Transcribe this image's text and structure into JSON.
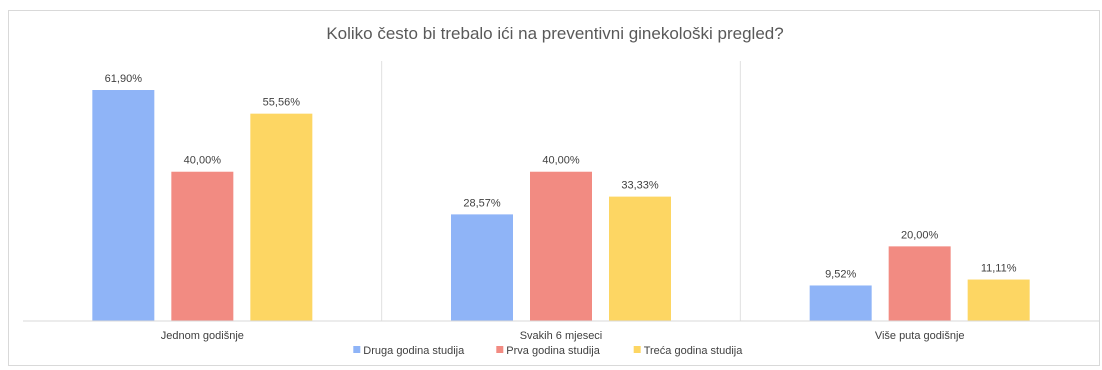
{
  "chart_data": {
    "type": "bar",
    "title": "Koliko često bi trebalo ići na preventivni ginekološki pregled?",
    "categories": [
      "Jednom godišnje",
      "Svakih 6 mjeseci",
      "Više puta godišnje"
    ],
    "series": [
      {
        "name": "Druga godina studija",
        "color": "#8fb4f7",
        "values": [
          61.9,
          28.57,
          9.52
        ],
        "labels": [
          "61,90%",
          "28,57%",
          "9,52%"
        ]
      },
      {
        "name": "Prva godina studija",
        "color": "#f28b82",
        "values": [
          40.0,
          40.0,
          20.0
        ],
        "labels": [
          "40,00%",
          "40,00%",
          "20,00%"
        ]
      },
      {
        "name": "Treća godina studija",
        "color": "#fdd663",
        "values": [
          55.56,
          33.33,
          11.11
        ],
        "labels": [
          "55,56%",
          "33,33%",
          "11,11%"
        ]
      }
    ],
    "ylim": [
      0,
      61.9
    ],
    "grid": false,
    "legend": "bottom"
  }
}
